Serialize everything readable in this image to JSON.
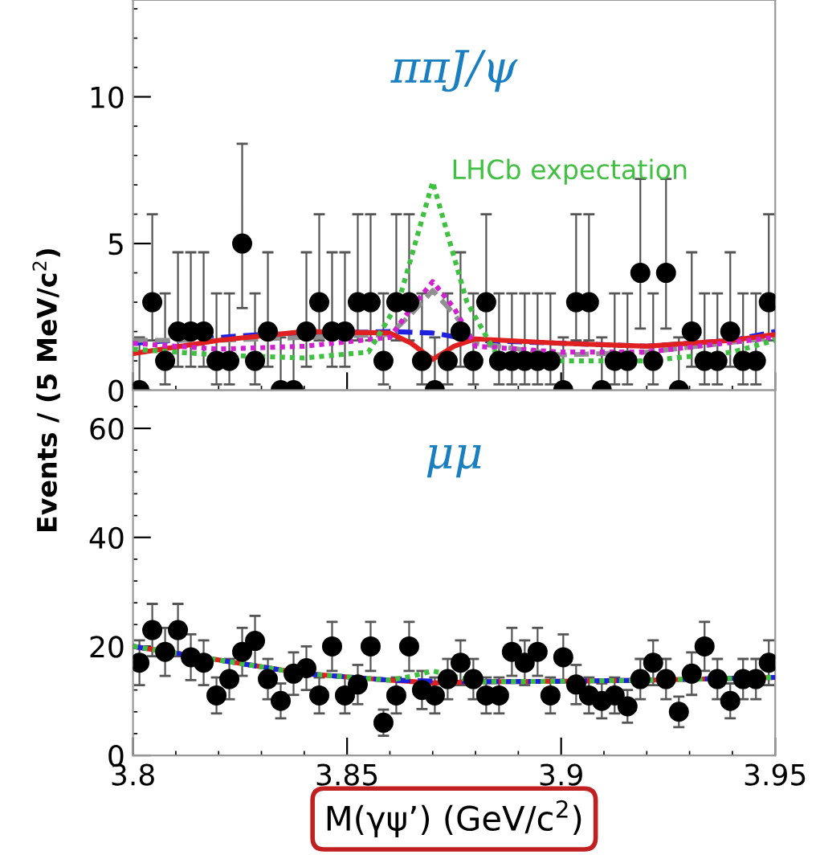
{
  "chart_data": [
    {
      "type": "scatter",
      "title": "ππJ/ψ",
      "annotations": [
        "LHCb expectation"
      ],
      "xlim": [
        3.8,
        3.95
      ],
      "xticks": [
        3.8,
        3.85,
        3.9,
        3.95
      ],
      "ylim": [
        0,
        13.3
      ],
      "yticks": [
        0,
        5,
        10
      ],
      "tick_labels": "y",
      "grid": false,
      "legend": false,
      "x": [
        3.8015,
        3.8045,
        3.8075,
        3.8105,
        3.8135,
        3.8165,
        3.8195,
        3.8225,
        3.8255,
        3.8285,
        3.8315,
        3.8345,
        3.8375,
        3.8405,
        3.8435,
        3.8465,
        3.8495,
        3.8525,
        3.8555,
        3.8585,
        3.8615,
        3.8645,
        3.8675,
        3.8705,
        3.8735,
        3.8765,
        3.8795,
        3.8825,
        3.8855,
        3.8885,
        3.8915,
        3.8945,
        3.8975,
        3.9005,
        3.9035,
        3.9065,
        3.9095,
        3.9125,
        3.9155,
        3.9185,
        3.9215,
        3.9245,
        3.9275,
        3.9305,
        3.9335,
        3.9365,
        3.9395,
        3.9425,
        3.9455,
        3.9485
      ],
      "series": [
        {
          "type": "line",
          "color": "#2020e0",
          "line_style": "dashed",
          "x": [
            3.8,
            3.83,
            3.86,
            3.87,
            3.88,
            3.9,
            3.92,
            3.94,
            3.95
          ],
          "values": [
            1.6,
            1.9,
            2.0,
            1.95,
            1.7,
            1.6,
            1.5,
            1.7,
            2.0
          ]
        },
        {
          "type": "line",
          "color": "#909090",
          "line_style": "dashed",
          "x": [
            3.8,
            3.82,
            3.84,
            3.86,
            3.865,
            3.87,
            3.875,
            3.88,
            3.9,
            3.92,
            3.95
          ],
          "values": [
            1.7,
            1.7,
            1.8,
            1.9,
            2.6,
            3.4,
            2.6,
            1.6,
            1.2,
            1.3,
            1.8
          ]
        },
        {
          "type": "line",
          "color": "#d020d0",
          "line_style": "dotted",
          "x": [
            3.8,
            3.82,
            3.84,
            3.86,
            3.865,
            3.87,
            3.875,
            3.88,
            3.9,
            3.92,
            3.95
          ],
          "values": [
            1.6,
            1.4,
            1.5,
            1.8,
            2.8,
            3.7,
            2.8,
            1.5,
            1.3,
            1.3,
            1.8
          ]
        },
        {
          "type": "line",
          "color": "#40c040",
          "line_style": "dotted",
          "x": [
            3.8,
            3.82,
            3.84,
            3.855,
            3.862,
            3.87,
            3.878,
            3.885,
            3.9,
            3.92,
            3.94,
            3.95
          ],
          "values": [
            1.4,
            1.2,
            1.1,
            1.3,
            3.0,
            7.1,
            3.0,
            1.2,
            1.0,
            1.0,
            1.3,
            1.7
          ]
        },
        {
          "type": "line",
          "color": "#e02020",
          "line_style": "solid",
          "x": [
            3.8,
            3.82,
            3.84,
            3.86,
            3.865,
            3.87,
            3.875,
            3.88,
            3.9,
            3.92,
            3.94,
            3.95
          ],
          "values": [
            1.25,
            1.7,
            2.0,
            1.95,
            1.6,
            1.05,
            1.5,
            1.75,
            1.6,
            1.5,
            1.7,
            1.9
          ]
        },
        {
          "color": "#000000",
          "marker": "circle",
          "values": [
            0,
            3,
            1,
            2,
            2,
            2,
            1,
            1,
            5,
            1,
            2,
            0,
            0,
            2,
            3,
            2,
            2,
            3,
            3,
            1,
            3,
            3,
            1,
            0,
            1,
            2,
            1,
            3,
            1,
            1,
            1,
            1,
            1,
            0,
            3,
            3,
            0,
            1,
            1,
            4,
            1,
            4,
            0,
            2,
            1,
            1,
            2,
            1,
            1,
            3
          ],
          "errors": [
            [
              0,
              1.8
            ],
            [
              1.7,
              6.0
            ],
            [
              0.2,
              3.3
            ],
            [
              0.8,
              4.7
            ],
            [
              0.8,
              4.7
            ],
            [
              0.8,
              4.7
            ],
            [
              0.2,
              3.3
            ],
            [
              0.2,
              3.3
            ],
            [
              2.8,
              8.4
            ],
            [
              0.2,
              3.3
            ],
            [
              0.8,
              4.7
            ],
            [
              0,
              1.8
            ],
            [
              0,
              1.8
            ],
            [
              0.8,
              4.7
            ],
            [
              1.7,
              6.0
            ],
            [
              0.8,
              4.7
            ],
            [
              0.8,
              4.7
            ],
            [
              1.7,
              6.0
            ],
            [
              1.7,
              6.0
            ],
            [
              0.2,
              3.3
            ],
            [
              1.7,
              6.0
            ],
            [
              1.7,
              6.0
            ],
            [
              0.2,
              3.3
            ],
            [
              0,
              1.8
            ],
            [
              0.2,
              3.3
            ],
            [
              0.8,
              4.7
            ],
            [
              0.2,
              3.3
            ],
            [
              1.7,
              6.0
            ],
            [
              0.2,
              3.3
            ],
            [
              0.2,
              3.3
            ],
            [
              0.2,
              3.3
            ],
            [
              0.2,
              3.3
            ],
            [
              0.2,
              3.3
            ],
            [
              0,
              1.8
            ],
            [
              1.7,
              6.0
            ],
            [
              1.7,
              6.0
            ],
            [
              0,
              1.8
            ],
            [
              0.2,
              3.3
            ],
            [
              0.2,
              3.3
            ],
            [
              2.1,
              7.2
            ],
            [
              0.2,
              3.3
            ],
            [
              2.1,
              7.2
            ],
            [
              0,
              1.8
            ],
            [
              0.8,
              4.7
            ],
            [
              0.2,
              3.3
            ],
            [
              0.2,
              3.3
            ],
            [
              0.8,
              4.7
            ],
            [
              0.2,
              3.3
            ],
            [
              0.2,
              3.3
            ],
            [
              1.7,
              6.0
            ]
          ]
        }
      ]
    },
    {
      "type": "scatter",
      "title": "μμ",
      "xlabel": "M(γψ’) (GeV/c$^{2}$)",
      "ylabel": "Events / (5 MeV/c$^{2}$)",
      "xlim": [
        3.8,
        3.95
      ],
      "xticks": [
        3.8,
        3.85,
        3.9,
        3.95
      ],
      "ylim": [
        0,
        67
      ],
      "yticks": [
        0,
        20,
        40,
        60
      ],
      "grid": false,
      "legend": false,
      "x": [
        3.8015,
        3.8045,
        3.8075,
        3.8105,
        3.8135,
        3.8165,
        3.8195,
        3.8225,
        3.8255,
        3.8285,
        3.8315,
        3.8345,
        3.8375,
        3.8405,
        3.8435,
        3.8465,
        3.8495,
        3.8525,
        3.8555,
        3.8585,
        3.8615,
        3.8645,
        3.8675,
        3.8705,
        3.8735,
        3.8765,
        3.8795,
        3.8825,
        3.8855,
        3.8885,
        3.8915,
        3.8945,
        3.8975,
        3.9005,
        3.9035,
        3.9065,
        3.9095,
        3.9125,
        3.9155,
        3.9185,
        3.9215,
        3.9245,
        3.9275,
        3.9305,
        3.9335,
        3.9365,
        3.9395,
        3.9425,
        3.9455,
        3.9485
      ],
      "series": [
        {
          "type": "line",
          "color": "#40c040",
          "line_style": "dotted",
          "x": [
            3.8,
            3.82,
            3.84,
            3.86,
            3.865,
            3.87,
            3.875,
            3.88,
            3.9,
            3.92,
            3.95
          ],
          "values": [
            20,
            17.5,
            15,
            13.8,
            14.5,
            15.5,
            14.5,
            13.5,
            13.6,
            13.8,
            14.3
          ]
        },
        {
          "type": "line",
          "color": "#e02020",
          "line_style": "solid",
          "x": [
            3.8,
            3.82,
            3.84,
            3.86,
            3.87,
            3.88,
            3.9,
            3.92,
            3.95
          ],
          "values": [
            20,
            17.5,
            15,
            13.8,
            13.3,
            13.5,
            13.6,
            13.8,
            14.3
          ]
        },
        {
          "type": "line",
          "color": "#2020e0",
          "line_style": "dashed",
          "x": [
            3.8,
            3.82,
            3.84,
            3.86,
            3.88,
            3.9,
            3.92,
            3.95
          ],
          "values": [
            20,
            17.5,
            15,
            13.8,
            13.5,
            13.6,
            13.8,
            14.3
          ]
        },
        {
          "color": "#000000",
          "marker": "circle",
          "values": [
            17,
            23,
            19,
            23,
            18,
            17,
            11,
            14,
            19,
            21,
            14,
            10,
            15,
            16,
            11,
            20,
            11,
            13,
            20,
            6,
            11,
            20,
            12,
            11,
            14,
            17,
            14,
            11,
            11,
            19,
            17,
            19,
            11,
            18,
            13,
            11,
            10,
            11,
            9,
            14,
            17,
            14,
            8,
            15,
            20,
            14,
            10,
            14,
            14,
            17
          ],
          "errors": [
            4.1,
            4.8,
            4.4,
            4.8,
            4.2,
            4.1,
            3.3,
            3.7,
            4.4,
            4.6,
            3.7,
            3.2,
            3.9,
            4.0,
            3.3,
            4.5,
            3.3,
            3.6,
            4.5,
            2.4,
            3.3,
            4.5,
            3.5,
            3.3,
            3.7,
            4.1,
            3.7,
            3.3,
            3.3,
            4.4,
            4.1,
            4.4,
            3.3,
            4.2,
            3.6,
            3.3,
            3.2,
            3.3,
            3.0,
            3.7,
            4.1,
            3.7,
            2.8,
            3.9,
            4.5,
            3.7,
            3.2,
            3.7,
            3.7,
            4.1
          ]
        }
      ]
    }
  ]
}
